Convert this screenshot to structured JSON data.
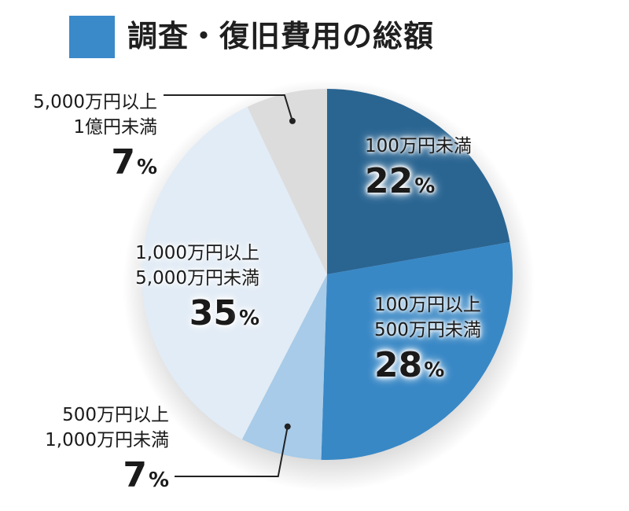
{
  "chart_data": {
    "type": "pie",
    "title": "調査・復旧費用の総額",
    "legend": "top-left",
    "slices": [
      {
        "label_lines": [
          "100万円未満"
        ],
        "value": 22,
        "color": "#2a6592"
      },
      {
        "label_lines": [
          "100万円以上",
          "500万円未満"
        ],
        "value": 28,
        "color": "#3888c6"
      },
      {
        "label_lines": [
          "500万円以上",
          "1,000万円未満"
        ],
        "value": 7,
        "color": "#a7cbe8"
      },
      {
        "label_lines": [
          "1,000万円以上",
          "5,000万円未満"
        ],
        "value": 35,
        "color": "#e2ecf6"
      },
      {
        "label_lines": [
          "5,000万円以上",
          "1億円未満"
        ],
        "value": 7,
        "color": "#dcdcdc"
      }
    ],
    "unit": "%",
    "swatch_color": "#3a89c9"
  }
}
